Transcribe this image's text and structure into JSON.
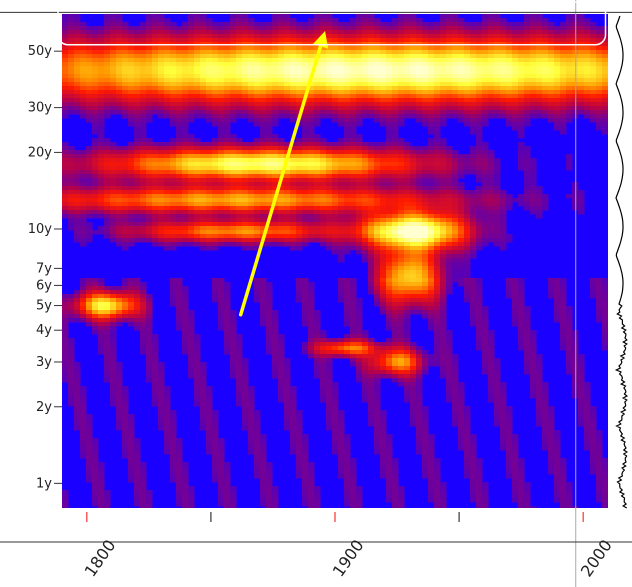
{
  "chart_data": {
    "type": "heatmap",
    "title": "",
    "xlabel": "",
    "ylabel": "",
    "xlim": [
      1790,
      2010
    ],
    "ylim_years": [
      0.8,
      70
    ],
    "y_scale": "log",
    "x_ticks": [
      {
        "value": 1800,
        "label": "1800",
        "labeled": true
      },
      {
        "value": 1850,
        "label": "",
        "labeled": false
      },
      {
        "value": 1900,
        "label": "1900",
        "labeled": true
      },
      {
        "value": 1950,
        "label": "",
        "labeled": false
      },
      {
        "value": 2000,
        "label": "2000",
        "labeled": true
      }
    ],
    "y_ticks": [
      {
        "value": 1,
        "label": "1y"
      },
      {
        "value": 2,
        "label": "2y"
      },
      {
        "value": 3,
        "label": "3y"
      },
      {
        "value": 4,
        "label": "4y"
      },
      {
        "value": 5,
        "label": "5y"
      },
      {
        "value": 6,
        "label": "6y"
      },
      {
        "value": 7,
        "label": "7y"
      },
      {
        "value": 10,
        "label": "10y"
      },
      {
        "value": 20,
        "label": "20y"
      },
      {
        "value": 30,
        "label": "30y"
      },
      {
        "value": 50,
        "label": "50y"
      }
    ],
    "colormap": [
      "#1a00ff",
      "#b0004f",
      "#ff1a00",
      "#ff9a00",
      "#ffff3a",
      "#ffffd0"
    ],
    "power_regions": [
      {
        "x_center": 1915,
        "period_center": 42,
        "x_spread": 160,
        "period_spread": 0.12,
        "strength": 0.95
      },
      {
        "x_center": 1870,
        "period_center": 18,
        "x_spread": 60,
        "period_spread": 0.06,
        "strength": 0.85
      },
      {
        "x_center": 1860,
        "period_center": 13,
        "x_spread": 80,
        "period_spread": 0.05,
        "strength": 0.6
      },
      {
        "x_center": 1860,
        "period_center": 9.8,
        "x_spread": 40,
        "period_spread": 0.04,
        "strength": 0.55
      },
      {
        "x_center": 1932,
        "period_center": 9.8,
        "x_spread": 20,
        "period_spread": 0.07,
        "strength": 1.0
      },
      {
        "x_center": 1930,
        "period_center": 6.5,
        "x_spread": 12,
        "period_spread": 0.1,
        "strength": 0.7
      },
      {
        "x_center": 1808,
        "period_center": 5.0,
        "x_spread": 12,
        "period_spread": 0.05,
        "strength": 0.75
      },
      {
        "x_center": 1905,
        "period_center": 3.4,
        "x_spread": 12,
        "period_spread": 0.03,
        "strength": 0.5
      },
      {
        "x_center": 1925,
        "period_center": 3.0,
        "x_spread": 10,
        "period_spread": 0.05,
        "strength": 0.55
      }
    ],
    "annotations": [
      {
        "type": "arrow",
        "color": "#ffff00",
        "from": {
          "x": 1862,
          "period": 4.6
        },
        "to": {
          "x": 1896,
          "period": 60
        }
      },
      {
        "type": "rounded-box",
        "color": "#ffffff",
        "x_range": [
          1790,
          2009
        ],
        "period_range": [
          53,
          78
        ]
      }
    ],
    "reference_lines": [
      {
        "orientation": "vertical",
        "value": 1997,
        "color": "#aaaaaa"
      },
      {
        "orientation": "horizontal",
        "value": 71,
        "color": "#333333"
      }
    ],
    "side_profile_color": "#000000"
  }
}
